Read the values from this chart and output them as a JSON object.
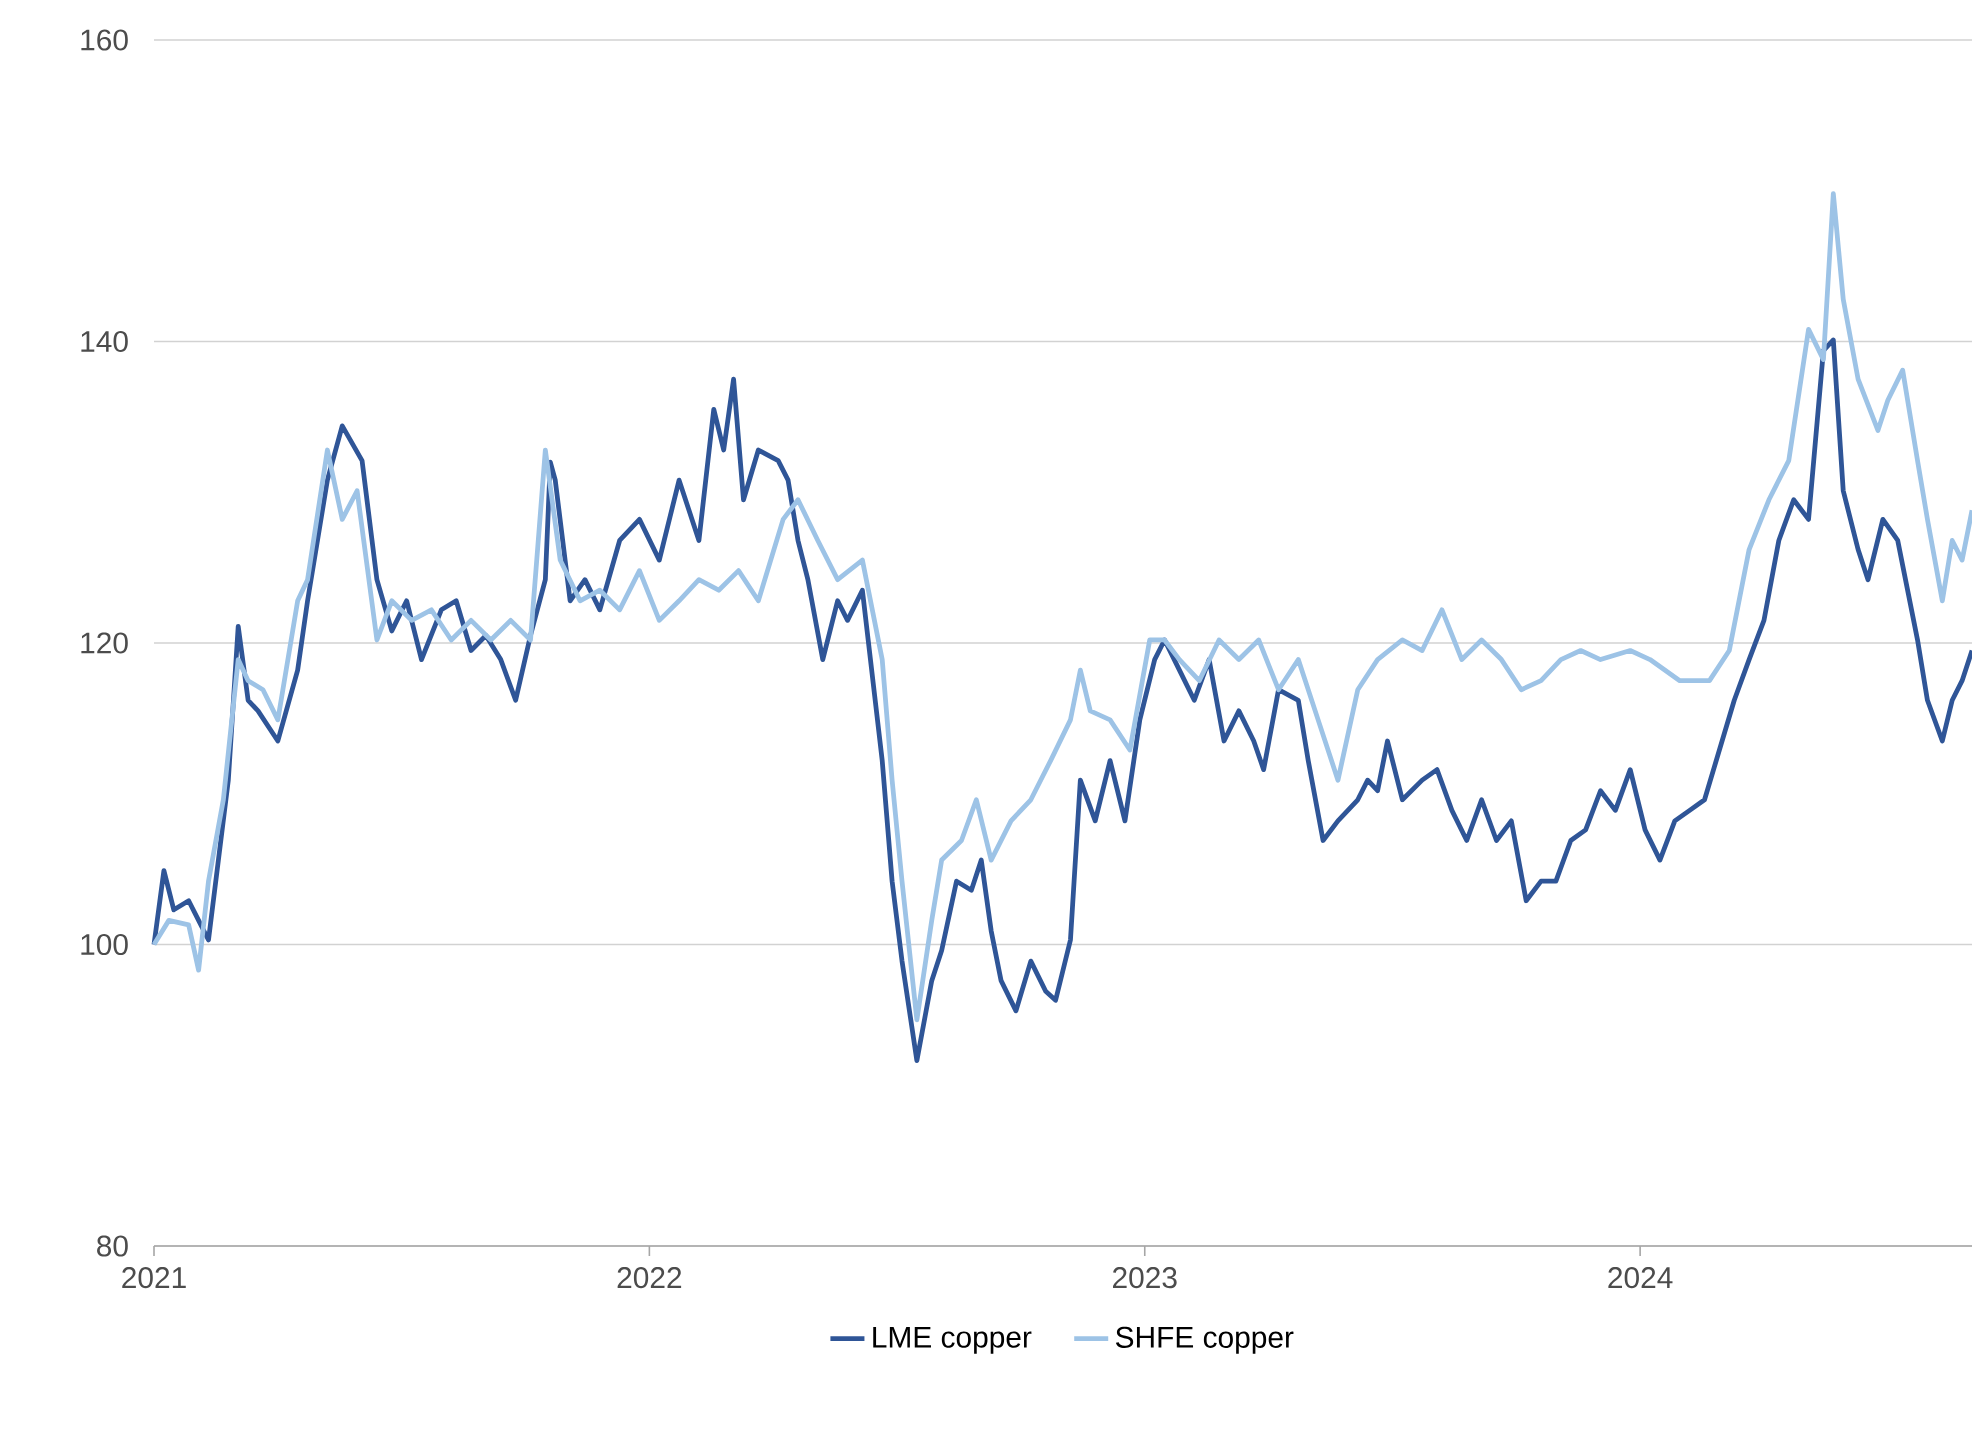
{
  "chart_data": {
    "type": "line",
    "xlim": [
      2021,
      2024.67
    ],
    "xticks": [
      2021,
      2022,
      2023,
      2024
    ],
    "ylim": [
      80,
      160
    ],
    "yticks": [
      80,
      100,
      120,
      140,
      160
    ],
    "grid": "y",
    "legend": "bottom",
    "marker": "none",
    "line_style": "solid",
    "series": [
      {
        "name": "LME copper",
        "color": "#2f5597",
        "x": [
          2021.0,
          2021.02,
          2021.04,
          2021.07,
          2021.09,
          2021.11,
          2021.13,
          2021.15,
          2021.17,
          2021.19,
          2021.21,
          2021.25,
          2021.29,
          2021.31,
          2021.35,
          2021.38,
          2021.42,
          2021.45,
          2021.48,
          2021.51,
          2021.54,
          2021.58,
          2021.61,
          2021.64,
          2021.67,
          2021.7,
          2021.73,
          2021.76,
          2021.79,
          2021.8,
          2021.81,
          2021.84,
          2021.87,
          2021.9,
          2021.94,
          2021.98,
          2022.02,
          2022.06,
          2022.1,
          2022.13,
          2022.15,
          2022.17,
          2022.19,
          2022.22,
          2022.26,
          2022.28,
          2022.3,
          2022.32,
          2022.35,
          2022.38,
          2022.4,
          2022.43,
          2022.47,
          2022.49,
          2022.51,
          2022.54,
          2022.57,
          2022.59,
          2022.62,
          2022.65,
          2022.67,
          2022.69,
          2022.71,
          2022.74,
          2022.77,
          2022.8,
          2022.82,
          2022.85,
          2022.87,
          2022.9,
          2022.93,
          2022.96,
          2022.99,
          2023.02,
          2023.04,
          2023.07,
          2023.1,
          2023.13,
          2023.16,
          2023.19,
          2023.22,
          2023.24,
          2023.27,
          2023.31,
          2023.33,
          2023.36,
          2023.39,
          2023.43,
          2023.45,
          2023.47,
          2023.49,
          2023.52,
          2023.56,
          2023.59,
          2023.62,
          2023.65,
          2023.68,
          2023.71,
          2023.74,
          2023.77,
          2023.8,
          2023.83,
          2023.86,
          2023.89,
          2023.92,
          2023.95,
          2023.98,
          2024.01,
          2024.04,
          2024.07,
          2024.1,
          2024.13,
          2024.16,
          2024.19,
          2024.22,
          2024.25,
          2024.28,
          2024.31,
          2024.34,
          2024.37,
          2024.39,
          2024.41,
          2024.44,
          2024.46,
          2024.49,
          2024.52,
          2024.54,
          2024.56,
          2024.58,
          2024.61,
          2024.63,
          2024.65,
          2024.67
        ],
        "values": [
          100.0,
          104.9,
          102.3,
          102.9,
          101.6,
          100.3,
          105.6,
          110.9,
          121.1,
          116.2,
          115.5,
          113.5,
          118.2,
          122.8,
          130.8,
          134.4,
          132.1,
          124.2,
          120.8,
          122.8,
          118.9,
          122.2,
          122.8,
          119.5,
          120.5,
          118.9,
          116.2,
          120.5,
          124.2,
          132.0,
          130.8,
          122.8,
          124.2,
          122.2,
          126.8,
          128.2,
          125.5,
          130.8,
          126.8,
          135.5,
          132.8,
          137.5,
          129.5,
          132.8,
          132.1,
          130.8,
          126.8,
          124.2,
          118.9,
          122.8,
          121.5,
          123.5,
          112.2,
          104.2,
          98.9,
          92.3,
          97.6,
          99.6,
          104.2,
          103.6,
          105.6,
          100.9,
          97.6,
          95.6,
          98.9,
          96.9,
          96.3,
          100.3,
          110.9,
          108.2,
          112.2,
          108.2,
          114.9,
          118.9,
          120.2,
          118.2,
          116.2,
          118.9,
          113.5,
          115.5,
          113.5,
          111.6,
          116.9,
          116.2,
          112.2,
          106.9,
          108.2,
          109.6,
          110.9,
          110.2,
          113.5,
          109.6,
          110.9,
          111.6,
          108.9,
          106.9,
          109.6,
          106.9,
          108.2,
          102.9,
          104.2,
          104.2,
          106.9,
          107.6,
          110.2,
          108.9,
          111.6,
          107.6,
          105.6,
          108.2,
          108.9,
          109.6,
          112.9,
          116.2,
          118.9,
          121.5,
          126.8,
          129.5,
          128.2,
          139.4,
          140.1,
          130.1,
          126.2,
          124.2,
          128.2,
          126.8,
          123.5,
          120.2,
          116.2,
          113.5,
          116.2,
          117.5,
          119.5
        ]
      },
      {
        "name": "SHFE copper",
        "color": "#9dc3e6",
        "x": [
          2021.0,
          2021.03,
          2021.07,
          2021.09,
          2021.11,
          2021.14,
          2021.17,
          2021.19,
          2021.22,
          2021.25,
          2021.29,
          2021.31,
          2021.35,
          2021.38,
          2021.41,
          2021.45,
          2021.48,
          2021.52,
          2021.56,
          2021.6,
          2021.64,
          2021.68,
          2021.72,
          2021.76,
          2021.79,
          2021.82,
          2021.86,
          2021.9,
          2021.94,
          2021.98,
          2022.02,
          2022.06,
          2022.1,
          2022.14,
          2022.18,
          2022.22,
          2022.27,
          2022.3,
          2022.34,
          2022.38,
          2022.43,
          2022.47,
          2022.49,
          2022.51,
          2022.54,
          2022.57,
          2022.59,
          2022.63,
          2022.66,
          2022.69,
          2022.73,
          2022.77,
          2022.81,
          2022.85,
          2022.87,
          2022.89,
          2022.93,
          2022.97,
          2023.01,
          2023.04,
          2023.07,
          2023.11,
          2023.15,
          2023.19,
          2023.23,
          2023.27,
          2023.31,
          2023.35,
          2023.39,
          2023.43,
          2023.47,
          2023.52,
          2023.56,
          2023.6,
          2023.64,
          2023.68,
          2023.72,
          2023.76,
          2023.8,
          2023.84,
          2023.88,
          2023.92,
          2023.98,
          2024.02,
          2024.08,
          2024.14,
          2024.18,
          2024.22,
          2024.26,
          2024.3,
          2024.34,
          2024.37,
          2024.39,
          2024.41,
          2024.44,
          2024.48,
          2024.5,
          2024.53,
          2024.56,
          2024.58,
          2024.61,
          2024.63,
          2024.65,
          2024.67
        ],
        "values": [
          100.0,
          101.6,
          101.3,
          98.3,
          104.2,
          109.6,
          118.9,
          117.5,
          116.9,
          114.9,
          122.8,
          124.2,
          132.8,
          128.2,
          130.1,
          120.2,
          122.8,
          121.5,
          122.2,
          120.2,
          121.5,
          120.2,
          121.5,
          120.2,
          132.8,
          125.5,
          122.8,
          123.5,
          122.2,
          124.8,
          121.5,
          122.8,
          124.2,
          123.5,
          124.8,
          122.8,
          128.2,
          129.5,
          126.8,
          124.2,
          125.5,
          118.9,
          110.9,
          104.2,
          95.0,
          101.6,
          105.6,
          106.9,
          109.6,
          105.6,
          108.2,
          109.6,
          112.2,
          114.9,
          118.2,
          115.5,
          114.9,
          112.9,
          120.2,
          120.2,
          118.9,
          117.5,
          120.2,
          118.9,
          120.2,
          116.9,
          118.9,
          114.9,
          110.9,
          116.9,
          118.9,
          120.2,
          119.5,
          122.2,
          118.9,
          120.2,
          118.9,
          116.9,
          117.5,
          118.9,
          119.5,
          118.9,
          119.5,
          118.9,
          117.5,
          117.5,
          119.5,
          126.2,
          129.5,
          132.1,
          140.8,
          138.8,
          149.8,
          142.8,
          137.5,
          134.1,
          136.1,
          138.1,
          132.1,
          128.2,
          122.8,
          126.8,
          125.5,
          128.8
        ]
      }
    ]
  }
}
